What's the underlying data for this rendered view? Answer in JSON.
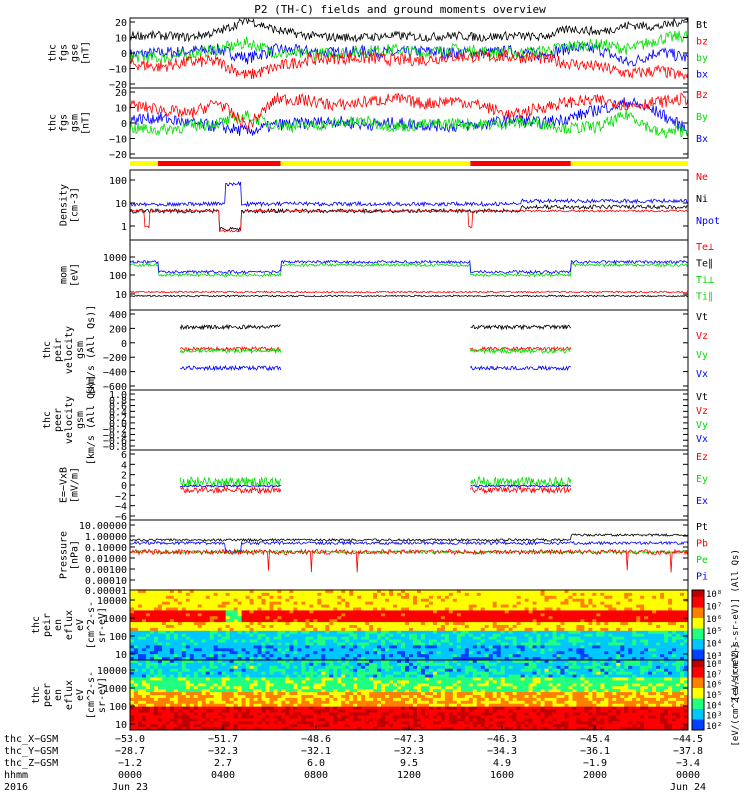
{
  "title": "P2 (TH-C) fields and ground moments overview",
  "colors": {
    "black": "#000000",
    "red": "#ff0000",
    "green": "#00dd00",
    "blue": "#0000ff",
    "yellow": "#ffff00"
  },
  "chart_data": [
    {
      "type": "line",
      "panel": "fgs-gse",
      "ylabel": [
        "thc",
        "fgs",
        "gse",
        "[nT]"
      ],
      "ylim": [
        -20,
        20
      ],
      "yticks": [
        "20",
        "10",
        "0",
        "−10",
        "−20"
      ],
      "series": [
        {
          "name": "Bt",
          "color": "black",
          "approx": [
            10,
            10,
            9,
            12,
            19,
            13,
            10,
            9,
            9,
            10,
            9,
            10,
            9,
            10,
            9,
            14,
            12,
            16,
            15,
            19
          ]
        },
        {
          "name": "bz",
          "color": "red",
          "approx": [
            -6,
            -8,
            -5,
            -5,
            -13,
            -8,
            -4,
            -3,
            -3,
            -4,
            -4,
            -2,
            -2,
            -2,
            -3,
            -6,
            -8,
            -12,
            -10,
            -14
          ]
        },
        {
          "name": "by",
          "color": "green",
          "approx": [
            -2,
            -3,
            -1,
            2,
            6,
            0,
            -1,
            0,
            1,
            2,
            0,
            2,
            1,
            0,
            1,
            4,
            5,
            2,
            8,
            10
          ]
        },
        {
          "name": "bx",
          "color": "blue",
          "approx": [
            -1,
            0,
            1,
            2,
            -3,
            2,
            1,
            0,
            1,
            0,
            1,
            0,
            0,
            1,
            -1,
            3,
            2,
            -6,
            1,
            -3
          ]
        }
      ]
    },
    {
      "type": "line",
      "panel": "fgs-gsm",
      "ylabel": [
        "thc",
        "fgs",
        "gsm",
        "[nT]"
      ],
      "ylim": [
        -20,
        20
      ],
      "yticks": [
        "20",
        "10",
        "0",
        "−10",
        "−20"
      ],
      "series": [
        {
          "name": "Bz",
          "color": "red",
          "approx": [
            10,
            8,
            5,
            12,
            -2,
            14,
            13,
            10,
            12,
            14,
            11,
            13,
            10,
            4,
            9,
            12,
            13,
            10,
            12,
            14
          ]
        },
        {
          "name": "By",
          "color": "green",
          "approx": [
            -3,
            -4,
            -2,
            0,
            4,
            -1,
            -2,
            0,
            1,
            -2,
            -1,
            0,
            -1,
            0,
            0,
            -3,
            -2,
            5,
            -6,
            -4
          ]
        },
        {
          "name": "Bx",
          "color": "blue",
          "approx": [
            2,
            3,
            0,
            -2,
            -5,
            -1,
            0,
            1,
            -1,
            0,
            -1,
            -2,
            -1,
            2,
            0,
            3,
            8,
            12,
            6,
            -4
          ]
        }
      ]
    },
    {
      "type": "bar",
      "panel": "mode-bar",
      "segments": [
        [
          "yellow",
          0,
          0.05
        ],
        [
          "red",
          0.05,
          0.27
        ],
        [
          "yellow",
          0.27,
          0.61
        ],
        [
          "red",
          0.61,
          0.79
        ],
        [
          "yellow",
          0.79,
          1
        ]
      ]
    },
    {
      "type": "line",
      "panel": "density",
      "ylabel": [
        "Density",
        "[cm-3]"
      ],
      "yscale": "log",
      "ylim": [
        0.1,
        200
      ],
      "yticks": [
        "100",
        "10",
        "1"
      ],
      "series": [
        {
          "name": "Ne",
          "color": "red"
        },
        {
          "name": "Ni",
          "color": "black"
        },
        {
          "name": "Npot",
          "color": "blue"
        }
      ]
    },
    {
      "type": "line",
      "panel": "temperature",
      "ylabel": [
        "mom",
        "[eV]"
      ],
      "yscale": "log",
      "ylim": [
        3,
        3000
      ],
      "yticks": [
        "1000",
        "100",
        "10"
      ],
      "series": [
        {
          "name": "Te⊥",
          "color": "red"
        },
        {
          "name": "Te∥",
          "color": "black"
        },
        {
          "name": "Ti⊥",
          "color": "green"
        },
        {
          "name": "Ti∥",
          "color": "green"
        }
      ]
    },
    {
      "type": "line",
      "panel": "peir-velocity",
      "ylabel": [
        "thc",
        "peir",
        "velocity",
        "gsm",
        "[km/s (All Qs)]"
      ],
      "ylim": [
        -600,
        600
      ],
      "yticks": [
        "400",
        "200",
        "0",
        "−200",
        "−400",
        "−600"
      ],
      "series": [
        {
          "name": "Vt",
          "color": "black"
        },
        {
          "name": "Vz",
          "color": "red"
        },
        {
          "name": "Vy",
          "color": "green"
        },
        {
          "name": "Vx",
          "color": "blue"
        }
      ]
    },
    {
      "type": "line",
      "panel": "peer-velocity",
      "ylabel": [
        "thc",
        "peer",
        "velocity",
        "gsm",
        "[km/s (All Qs)]"
      ],
      "ylim": [
        -1,
        1
      ],
      "yticks": [
        "1.0",
        "0.8",
        "0.6",
        "0.4",
        "0.2",
        "0.0",
        "−0.2",
        "−0.4",
        "−0.6",
        "−0.8"
      ],
      "series": [
        {
          "name": "Vt",
          "color": "black"
        },
        {
          "name": "Vz",
          "color": "red"
        },
        {
          "name": "Vy",
          "color": "green"
        },
        {
          "name": "Vx",
          "color": "blue"
        }
      ]
    },
    {
      "type": "line",
      "panel": "e-field",
      "ylabel": [
        "E=−VxB",
        "[mV/m]"
      ],
      "ylim": [
        -6,
        6
      ],
      "yticks": [
        "6",
        "4",
        "2",
        "0",
        "−2",
        "−4",
        "−6"
      ],
      "series": [
        {
          "name": "Ez",
          "color": "red"
        },
        {
          "name": "Ey",
          "color": "green"
        },
        {
          "name": "Ex",
          "color": "blue"
        }
      ]
    },
    {
      "type": "line",
      "panel": "pressure",
      "ylabel": [
        "Pressure",
        "[nPa]"
      ],
      "yscale": "log",
      "ylim": [
        1e-07,
        10
      ],
      "yticks": [
        "10.00000",
        "1.00000",
        "0.10000",
        "0.01000",
        "0.00100",
        "0.00010",
        "0.00001"
      ],
      "series": [
        {
          "name": "Pt",
          "color": "black"
        },
        {
          "name": "Pb",
          "color": "red"
        },
        {
          "name": "Pe",
          "color": "green"
        },
        {
          "name": "Pi",
          "color": "blue"
        }
      ]
    },
    {
      "type": "heatmap",
      "panel": "peir-spectrogram",
      "ylabel": [
        "thc",
        "peir",
        "en",
        "eflux",
        "eV",
        "[cm^2-s-",
        "sr-eV]"
      ],
      "yscale": "log",
      "ylim": [
        5,
        30000
      ],
      "yticks": [
        "10000",
        "1000",
        "100",
        "10"
      ],
      "colorbar": {
        "label": "[eV/(cm^2-s-sr-eV)] (All Qs)",
        "ticks": [
          "10⁸",
          "10⁷",
          "10⁶",
          "10⁵",
          "10⁴",
          "10³"
        ]
      }
    },
    {
      "type": "heatmap",
      "panel": "peer-spectrogram",
      "ylabel": [
        "thc",
        "peer",
        "en",
        "eflux",
        "eV",
        "[cm^2-s-",
        "sr-eV]"
      ],
      "yscale": "log",
      "ylim": [
        5,
        30000
      ],
      "yticks": [
        "10000",
        "1000",
        "100",
        "10"
      ],
      "colorbar": {
        "label": "[eV/(cm^2-s-sr-eV)]",
        "ticks": [
          "10⁸",
          "10⁷",
          "10⁶",
          "10⁵",
          "10⁴",
          "10³",
          "10²"
        ]
      }
    }
  ],
  "time_axis": {
    "row_labels": [
      "thc_X−GSM",
      "thc_Y−GSM",
      "thc_Z−GSM",
      "hhmm",
      "2016"
    ],
    "ticks": [
      {
        "x": "−53.0",
        "y": "−28.7",
        "z": "−1.2",
        "t": "0000",
        "d": "Jun 23"
      },
      {
        "x": "−51.7",
        "y": "−32.3",
        "z": "2.7",
        "t": "0400",
        "d": ""
      },
      {
        "x": "−48.6",
        "y": "−32.1",
        "z": "6.0",
        "t": "0800",
        "d": ""
      },
      {
        "x": "−47.3",
        "y": "−32.3",
        "z": "9.5",
        "t": "1200",
        "d": ""
      },
      {
        "x": "−46.3",
        "y": "−34.3",
        "z": "4.9",
        "t": "1600",
        "d": ""
      },
      {
        "x": "−45.4",
        "y": "−36.1",
        "z": "−1.9",
        "t": "2000",
        "d": ""
      },
      {
        "x": "−44.5",
        "y": "−37.8",
        "z": "−3.4",
        "t": "0000",
        "d": "Jun 24"
      }
    ]
  }
}
